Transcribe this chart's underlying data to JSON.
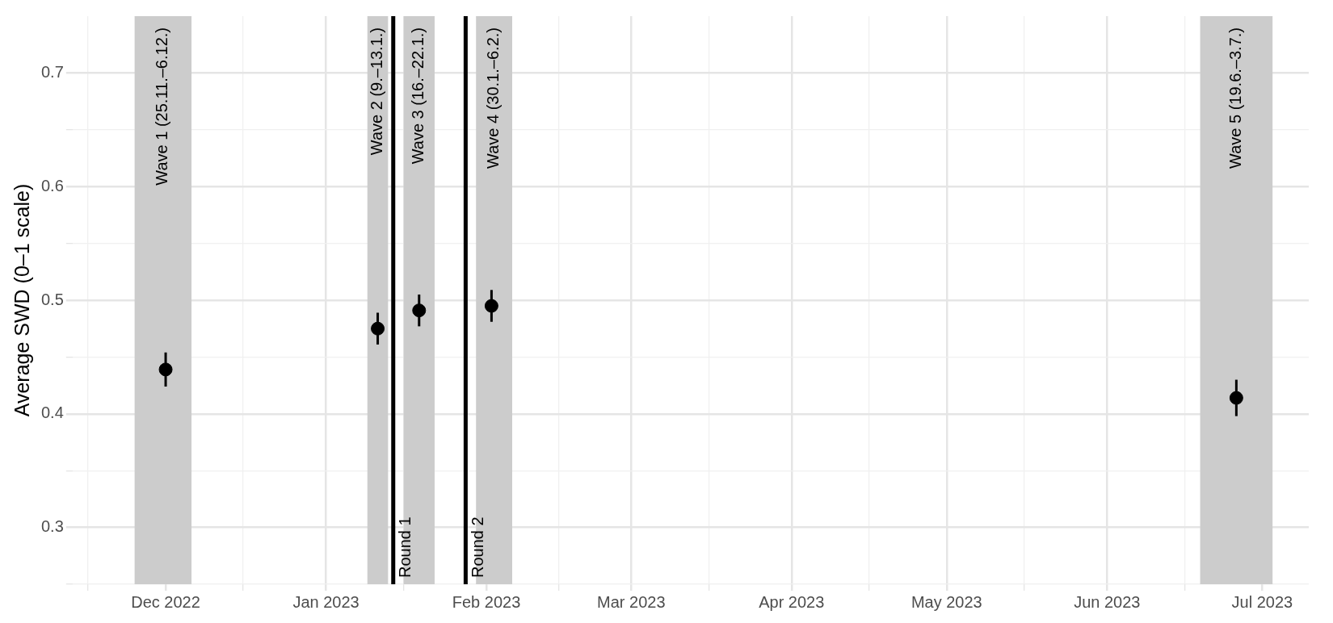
{
  "chart_data": {
    "type": "scatter",
    "ylabel": "Average SWD (0–1 scale)",
    "series": [
      {
        "color": "#000000",
        "x": [
          "2022-12-01",
          "2023-01-11",
          "2023-01-19",
          "2023-02-02",
          "2023-06-26"
        ],
        "values": [
          0.439,
          0.475,
          0.491,
          0.495,
          0.414
        ],
        "errors": [
          0.015,
          0.014,
          0.014,
          0.014,
          0.016
        ]
      }
    ],
    "xlim": [
      "2022-11-13",
      "2023-07-10"
    ],
    "xticks": [
      {
        "value": "2022-11-16",
        "label": null
      },
      {
        "value": "2022-12-01",
        "label": "Dec 2022"
      },
      {
        "value": "2022-12-16",
        "label": null
      },
      {
        "value": "2023-01-01",
        "label": "Jan 2023"
      },
      {
        "value": "2023-01-16",
        "label": null
      },
      {
        "value": "2023-02-01",
        "label": "Feb 2023"
      },
      {
        "value": "2023-02-15",
        "label": null
      },
      {
        "value": "2023-03-01",
        "label": "Mar 2023"
      },
      {
        "value": "2023-03-16",
        "label": null
      },
      {
        "value": "2023-04-01",
        "label": "Apr 2023"
      },
      {
        "value": "2023-04-16",
        "label": null
      },
      {
        "value": "2023-05-01",
        "label": "May 2023"
      },
      {
        "value": "2023-05-16",
        "label": null
      },
      {
        "value": "2023-06-01",
        "label": "Jun 2023"
      },
      {
        "value": "2023-06-16",
        "label": null
      },
      {
        "value": "2023-07-01",
        "label": "Jul 2023"
      }
    ],
    "ylim": [
      0.25,
      0.75
    ],
    "yticks": [
      {
        "value": 0.25,
        "label": null
      },
      0.3,
      {
        "value": 0.35,
        "label": null
      },
      0.4,
      {
        "value": 0.45,
        "label": null
      },
      0.5,
      {
        "value": 0.55,
        "label": null
      },
      0.6,
      {
        "value": 0.65,
        "label": null
      },
      0.7
    ],
    "bands": [
      {
        "axis": "x",
        "from": "2022-11-25",
        "to": "2022-12-06",
        "label": "Wave 1 (25.11.–6.12.)",
        "color": "#cccccc"
      },
      {
        "axis": "x",
        "from": "2023-01-09",
        "to": "2023-01-13",
        "label": "Wave 2 (9.–13.1.)",
        "color": "#cccccc"
      },
      {
        "axis": "x",
        "from": "2023-01-16",
        "to": "2023-01-22",
        "label": "Wave 3 (16.–22.1.)",
        "color": "#cccccc"
      },
      {
        "axis": "x",
        "from": "2023-01-30",
        "to": "2023-02-06",
        "label": "Wave 4 (30.1.–6.2.)",
        "color": "#cccccc"
      },
      {
        "axis": "x",
        "from": "2023-06-19",
        "to": "2023-07-03",
        "label": "Wave 5 (19.6.–3.7.)",
        "color": "#cccccc"
      }
    ],
    "ref_lines": [
      {
        "axis": "x",
        "value": "2023-01-14",
        "label": "Round 1",
        "color": "#000000",
        "line_style": "solid"
      },
      {
        "axis": "x",
        "value": "2023-01-28",
        "label": "Round 2",
        "color": "#000000",
        "line_style": "solid"
      }
    ],
    "grid": true,
    "legend": false,
    "marker": "circle"
  }
}
